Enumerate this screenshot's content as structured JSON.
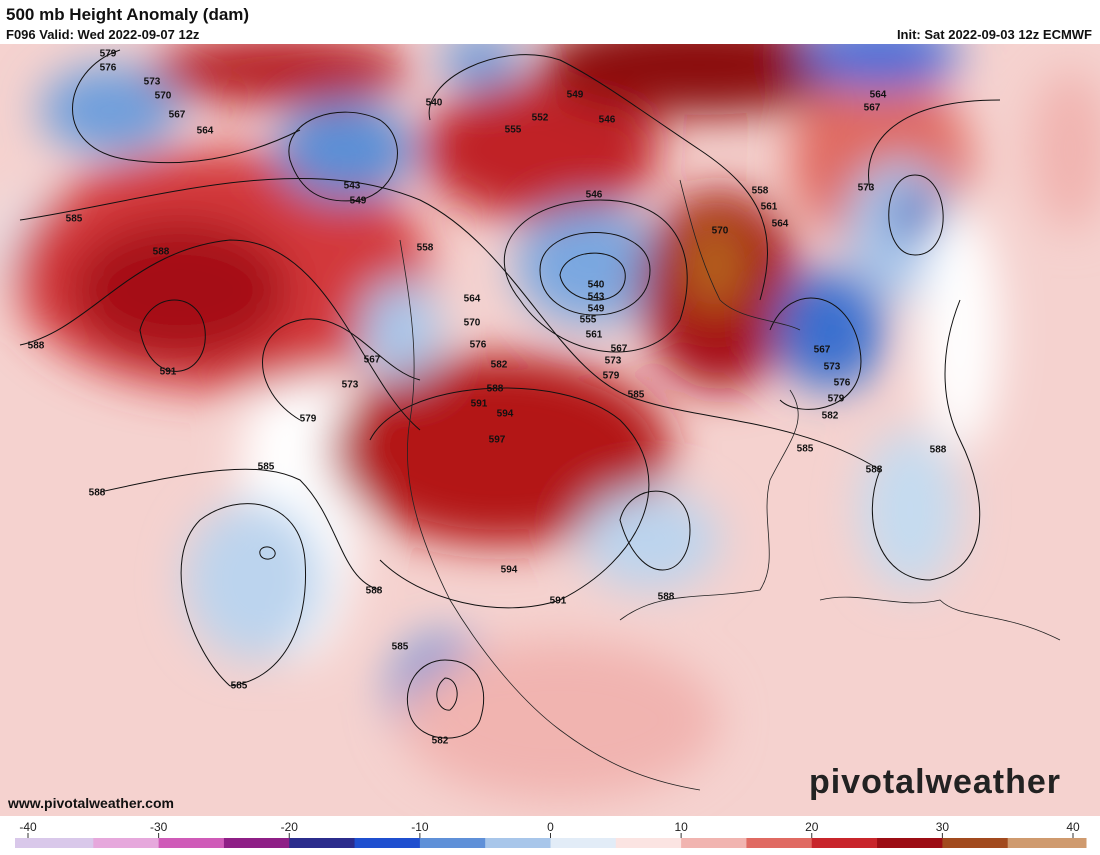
{
  "header": {
    "title": "500 mb Height Anomaly (dam)",
    "valid": "F096 Valid: Wed 2022-09-07 12z",
    "init": "Init: Sat 2022-09-03 12z ECMWF"
  },
  "footer": {
    "website": "www.pivotalweather.com",
    "logo": "pivotalweather"
  },
  "contour_labels": [
    "579",
    "576",
    "573",
    "570",
    "567",
    "564",
    "585",
    "588",
    "588",
    "591",
    "567",
    "573",
    "579",
    "585",
    "588",
    "540",
    "543",
    "549",
    "558",
    "555",
    "552",
    "549",
    "546",
    "546",
    "540",
    "543",
    "549",
    "555",
    "561",
    "564",
    "570",
    "576",
    "582",
    "588",
    "591",
    "594",
    "597",
    "567",
    "573",
    "579",
    "585",
    "570",
    "558",
    "561",
    "564",
    "573",
    "564",
    "567",
    "567",
    "573",
    "576",
    "579",
    "582",
    "585",
    "588",
    "588",
    "594",
    "591",
    "588",
    "588",
    "585",
    "585",
    "582"
  ],
  "colorbar": {
    "ticks": [
      -40,
      -30,
      -20,
      -10,
      0,
      10,
      20,
      30,
      40
    ],
    "colors": [
      "#d9c8ea",
      "#e6a8dc",
      "#cf5bb8",
      "#8e1f86",
      "#2b2c8c",
      "#1f4fcf",
      "#5f90d8",
      "#a8c6ea",
      "#e2ecf7",
      "#fbe4e2",
      "#f1b4b0",
      "#e06a62",
      "#c8252b",
      "#9c0d14",
      "#a24a1e",
      "#cf9a6e"
    ]
  }
}
